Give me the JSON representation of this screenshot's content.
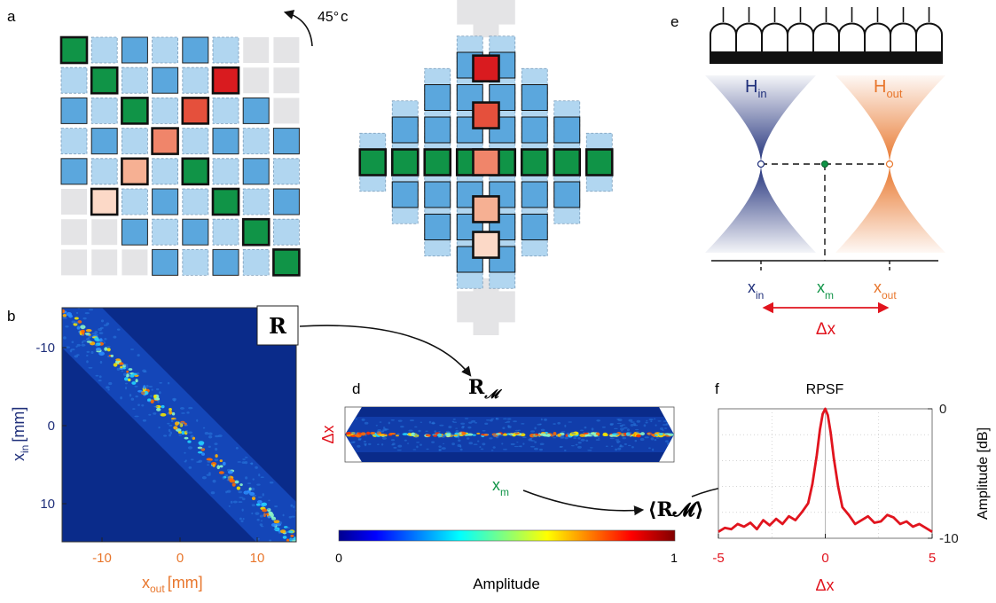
{
  "panel_labels": {
    "a": "a",
    "b": "b",
    "c": "c",
    "d": "d",
    "e": "e",
    "f": "f"
  },
  "panel_a": {
    "rotation_label": "45°",
    "grid": [
      [
        "G",
        "L",
        "B",
        "L",
        "B",
        "L",
        "X",
        "X"
      ],
      [
        "L",
        "G",
        "L",
        "B",
        "L",
        "R4",
        "X",
        "X"
      ],
      [
        "B",
        "L",
        "G",
        "L",
        "R3",
        "L",
        "B",
        "X"
      ],
      [
        "L",
        "B",
        "L",
        "R2",
        "L",
        "B",
        "L",
        "B"
      ],
      [
        "B",
        "L",
        "R1",
        "L",
        "G",
        "L",
        "B",
        "L"
      ],
      [
        "X",
        "R0",
        "L",
        "B",
        "L",
        "G",
        "L",
        "B"
      ],
      [
        "X",
        "X",
        "B",
        "L",
        "B",
        "L",
        "G",
        "L"
      ],
      [
        "X",
        "X",
        "X",
        "B",
        "L",
        "B",
        "L",
        "G"
      ]
    ]
  },
  "panel_c": {
    "center_column": [
      "R4",
      "R3",
      "R2",
      "R1",
      "R0"
    ],
    "middle_row": [
      "G",
      "G",
      "G",
      "G",
      "G",
      "G",
      "G",
      "G"
    ]
  },
  "panel_b": {
    "matrix_label": "R",
    "x_ticks": [
      "-10",
      "0",
      "10"
    ],
    "y_ticks": [
      "-10",
      "0",
      "10"
    ],
    "xlabel_main": "x",
    "xlabel_sub": "out",
    "xlabel_unit": "[mm]",
    "ylabel_main": "x",
    "ylabel_sub": "in",
    "ylabel_unit": "[mm]"
  },
  "panel_d": {
    "matrix_label_main": "R",
    "matrix_label_sub": "𝓜",
    "ylabel": "Δx",
    "xlabel_main": "x",
    "xlabel_sub": "m",
    "colorbar_min": "0",
    "colorbar_max": "1",
    "colorbar_label": "Amplitude"
  },
  "panel_e": {
    "h_in_main": "H",
    "h_in_sub": "in",
    "h_out_main": "H",
    "h_out_sub": "out",
    "x_in_main": "x",
    "x_in_sub": "in",
    "x_m_main": "x",
    "x_m_sub": "m",
    "x_out_main": "x",
    "x_out_sub": "out",
    "delta_label": "Δx",
    "probe_elements": 9
  },
  "panel_f": {
    "mean_label": "⟨R𝓜⟩",
    "chart_data": {
      "type": "line",
      "title": "RPSF",
      "xlabel": "Δx",
      "ylabel": "Amplitude [dB]",
      "xlim": [
        -5,
        5
      ],
      "ylim": [
        -10,
        0
      ],
      "x_ticks": [
        "-5",
        "0",
        "5"
      ],
      "y_ticks": [
        "0",
        "-10"
      ],
      "series": [
        {
          "color": "#e1141e",
          "x": [
            -5,
            -4.7,
            -4.4,
            -4.1,
            -3.8,
            -3.5,
            -3.2,
            -2.9,
            -2.6,
            -2.3,
            -2.0,
            -1.7,
            -1.4,
            -1.1,
            -0.8,
            -0.6,
            -0.4,
            -0.25,
            -0.12,
            0,
            0.12,
            0.25,
            0.4,
            0.6,
            0.8,
            1.1,
            1.4,
            1.7,
            2.0,
            2.3,
            2.6,
            2.9,
            3.2,
            3.5,
            3.8,
            4.1,
            4.4,
            4.7,
            5
          ],
          "values": [
            -9.5,
            -9.2,
            -9.3,
            -8.9,
            -9.1,
            -8.8,
            -9.3,
            -8.6,
            -9.0,
            -8.5,
            -8.9,
            -8.3,
            -8.6,
            -8.0,
            -7.3,
            -5.8,
            -3.6,
            -1.6,
            -0.4,
            0,
            -0.5,
            -1.8,
            -3.8,
            -6.0,
            -7.6,
            -8.2,
            -8.9,
            -8.6,
            -8.3,
            -8.8,
            -8.7,
            -8.2,
            -8.4,
            -8.9,
            -8.7,
            -9.1,
            -8.9,
            -9.2,
            -9.5
          ]
        }
      ]
    }
  },
  "colors": {
    "green": "#109447",
    "blue": "#5ba7dd",
    "light_blue": "#b1d6f0",
    "grey": "#e4e4e6",
    "red_ramp": [
      "#fcd9c7",
      "#f6b093",
      "#f0856a",
      "#e5503c",
      "#d91b1f"
    ],
    "navy": "#1f2f7a",
    "orange": "#e8762c",
    "probe_green": "#109447",
    "arrow_red": "#e1141e"
  }
}
